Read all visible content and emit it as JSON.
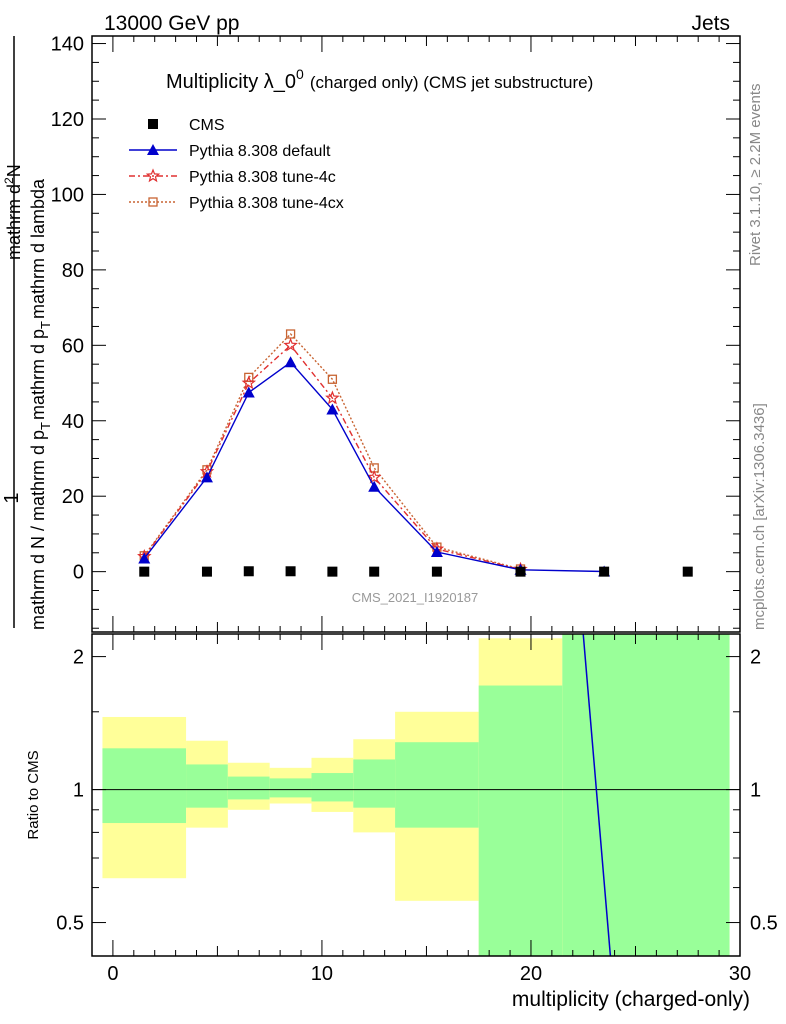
{
  "header": {
    "left": "13000 GeV pp",
    "right": "Jets"
  },
  "side_labels": {
    "rivet": "Rivet 3.1.10, ≥ 2.2M events",
    "mcplots": "mcplots.cern.ch [arXiv:1306.3436]"
  },
  "watermark": "CMS_2021_I1920187",
  "chart_data": [
    {
      "type": "line",
      "title": "Multiplicity λ_0⁰ (charged only) (CMS jet substructure)",
      "title_main": "Multiplicity λ_0",
      "title_sup": "0",
      "title_suffix": "(charged only) (CMS jet substructure)",
      "ylabel": "1 / mathrm d N / mathrm d p_T mathrm d p_T mathrm d lambda / mathrm d²N",
      "ylabel_parts": {
        "numerator": "1",
        "denominator": "mathrm d N / mathrm d p",
        "sub1": "T",
        "mid": "mathrm d p",
        "sub2": "T",
        "tail": "mathrm d lambda",
        "top": "mathrm d",
        "top_sup": "2",
        "top_end": "N"
      },
      "ylim": [
        -16,
        142
      ],
      "xlim": [
        -1,
        30
      ],
      "yticks": [
        0,
        20,
        40,
        60,
        80,
        100,
        120,
        140
      ],
      "ytick_labels": [
        "0",
        "20",
        "40",
        "60",
        "80",
        "100",
        "120",
        "140"
      ],
      "legend": {
        "placement": "top-left"
      },
      "series": [
        {
          "name": "CMS",
          "color": "#000000",
          "marker": "square",
          "x": [
            1.5,
            4.5,
            6.5,
            8.5,
            10.5,
            12.5,
            15.5,
            19.5,
            23.5,
            27.5
          ],
          "y": [
            0,
            0,
            0.1,
            0.1,
            0,
            0,
            0,
            0,
            0,
            0
          ]
        },
        {
          "name": "Pythia 8.308 default",
          "color": "#0000cc",
          "marker": "triangle",
          "dash": "solid",
          "x": [
            1.5,
            4.5,
            6.5,
            8.5,
            10.5,
            12.5,
            15.5,
            19.5,
            23.5
          ],
          "y": [
            3.5,
            25.0,
            47.5,
            55.5,
            43.0,
            22.5,
            5.2,
            0.5,
            0.05
          ]
        },
        {
          "name": "Pythia 8.308 tune-4c",
          "color": "#e03030",
          "marker": "star",
          "dash": "dashdot",
          "x": [
            1.5,
            4.5,
            6.5,
            8.5,
            10.5,
            12.5,
            15.5,
            19.5
          ],
          "y": [
            4.0,
            26.5,
            50.0,
            60.0,
            46.0,
            25.0,
            6.0,
            0.6
          ]
        },
        {
          "name": "Pythia 8.308 tune-4cx",
          "color": "#c86432",
          "marker": "open-square",
          "dash": "dotted",
          "x": [
            1.5,
            4.5,
            6.5,
            8.5,
            10.5,
            12.5,
            15.5,
            19.5
          ],
          "y": [
            4.2,
            27.0,
            51.5,
            63.0,
            51.0,
            27.5,
            6.5,
            0.7
          ]
        }
      ]
    },
    {
      "type": "area",
      "ylabel": "Ratio to CMS",
      "xlabel": "multiplicity (charged-only)",
      "ylim": [
        0.42,
        2.25
      ],
      "xlim": [
        -1,
        30
      ],
      "xticks": [
        0,
        10,
        20,
        30
      ],
      "xtick_labels": [
        "0",
        "10",
        "20",
        "30"
      ],
      "yticks": [
        0.5,
        1,
        2
      ],
      "ytick_labels": [
        "0.5",
        "1",
        "2"
      ],
      "bands": [
        {
          "x0": -0.5,
          "x1": 3.5,
          "yellow": [
            0.63,
            1.46
          ],
          "green": [
            0.84,
            1.24
          ]
        },
        {
          "x0": 3.5,
          "x1": 5.5,
          "yellow": [
            0.82,
            1.29
          ],
          "green": [
            0.91,
            1.14
          ]
        },
        {
          "x0": 5.5,
          "x1": 7.5,
          "yellow": [
            0.9,
            1.15
          ],
          "green": [
            0.95,
            1.07
          ]
        },
        {
          "x0": 7.5,
          "x1": 9.5,
          "yellow": [
            0.93,
            1.12
          ],
          "green": [
            0.96,
            1.06
          ]
        },
        {
          "x0": 9.5,
          "x1": 11.5,
          "yellow": [
            0.89,
            1.18
          ],
          "green": [
            0.94,
            1.09
          ]
        },
        {
          "x0": 11.5,
          "x1": 13.5,
          "yellow": [
            0.8,
            1.3
          ],
          "green": [
            0.91,
            1.17
          ]
        },
        {
          "x0": 13.5,
          "x1": 17.5,
          "yellow": [
            0.56,
            1.5
          ],
          "green": [
            0.82,
            1.28
          ]
        },
        {
          "x0": 17.5,
          "x1": 21.5,
          "yellow": [
            0.42,
            2.2
          ],
          "green": [
            0.42,
            1.72
          ]
        },
        {
          "x0": 21.5,
          "x1": 29.5,
          "yellow": [
            0.42,
            2.25
          ],
          "green": [
            0.42,
            2.25
          ]
        }
      ],
      "reference_line": 1,
      "series": [
        {
          "name": "Pythia 8.308 default",
          "color": "#0000cc",
          "x": [
            22.5,
            23.8
          ],
          "y": [
            2.25,
            0.42
          ]
        }
      ]
    }
  ]
}
